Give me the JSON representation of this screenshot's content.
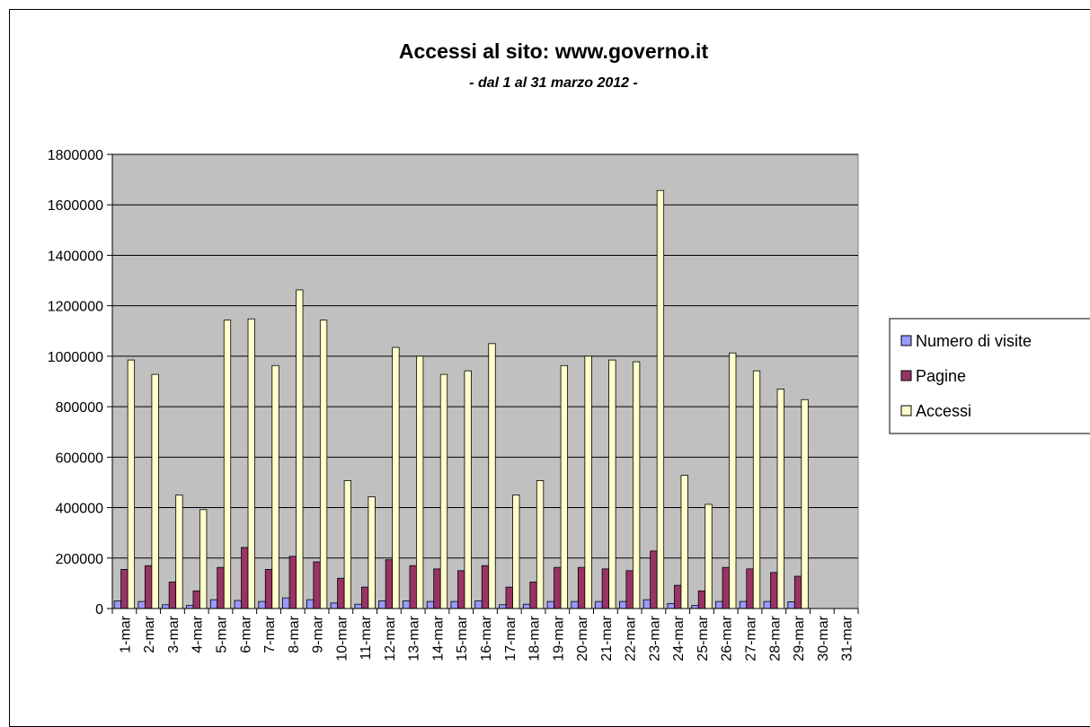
{
  "chart_data": {
    "type": "bar",
    "title": "Accessi al sito: www.governo.it",
    "subtitle": "- dal 1 al 31 marzo 2012 -",
    "xlabel": "",
    "ylabel": "",
    "ylim": [
      0,
      1800000
    ],
    "y_ticks": [
      "0",
      "200000",
      "400000",
      "600000",
      "800000",
      "1000000",
      "1200000",
      "1400000",
      "1600000",
      "1800000"
    ],
    "grid": true,
    "legend": "right",
    "categories": [
      "1-mar",
      "2-mar",
      "3-mar",
      "4-mar",
      "5-mar",
      "6-mar",
      "7-mar",
      "8-mar",
      "9-mar",
      "10-mar",
      "11-mar",
      "12-mar",
      "13-mar",
      "14-mar",
      "15-mar",
      "16-mar",
      "17-mar",
      "18-mar",
      "19-mar",
      "20-mar",
      "21-mar",
      "22-mar",
      "23-mar",
      "24-mar",
      "25-mar",
      "26-mar",
      "27-mar",
      "28-mar",
      "29-mar",
      "30-mar",
      "31-mar"
    ],
    "series": [
      {
        "name": "Numero di visite",
        "color": "#9999ff",
        "values": [
          30000,
          28000,
          15000,
          12000,
          35000,
          32000,
          28000,
          42000,
          35000,
          22000,
          17000,
          30000,
          30000,
          28000,
          28000,
          30000,
          15000,
          17000,
          28000,
          28000,
          28000,
          28000,
          35000,
          20000,
          12000,
          28000,
          28000,
          28000,
          27000,
          null,
          null
        ]
      },
      {
        "name": "Pagine",
        "color": "#993366",
        "values": [
          155000,
          170000,
          105000,
          70000,
          163000,
          242000,
          155000,
          207000,
          185000,
          120000,
          85000,
          193000,
          170000,
          157000,
          150000,
          170000,
          85000,
          105000,
          163000,
          163000,
          157000,
          150000,
          228000,
          92000,
          70000,
          163000,
          157000,
          143000,
          128000,
          null,
          null
        ]
      },
      {
        "name": "Accessi",
        "color": "#ffffcc",
        "values": [
          985000,
          928000,
          450000,
          392000,
          1143000,
          1148000,
          963000,
          1263000,
          1143000,
          507000,
          443000,
          1035000,
          1000000,
          928000,
          942000,
          1050000,
          450000,
          507000,
          963000,
          1000000,
          985000,
          978000,
          1657000,
          528000,
          413000,
          1013000,
          942000,
          870000,
          828000,
          null,
          null
        ]
      }
    ]
  }
}
